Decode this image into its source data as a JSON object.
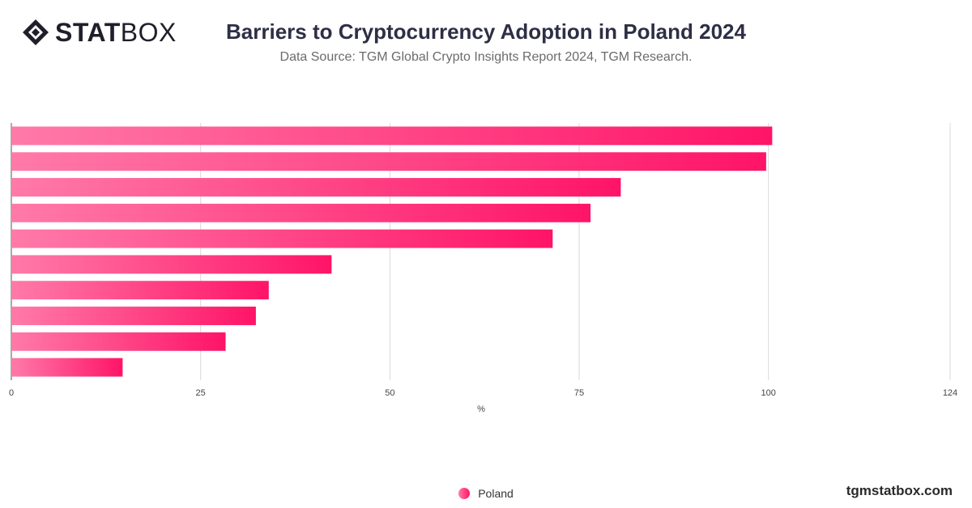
{
  "header": {
    "logo_bold": "STAT",
    "logo_light": "BOX",
    "logo_icon": "diamond-logo-icon"
  },
  "footer": {
    "site": "tgmstatbox.com"
  },
  "colors": {
    "bar_start": "#ff7aa8",
    "bar_end": "#ff1467",
    "grid": "#d9d9d9",
    "axis_text": "#444444"
  },
  "chart_data": {
    "type": "bar",
    "orientation": "horizontal",
    "title": "Barriers to Cryptocurrency Adoption in Poland 2024",
    "subtitle": "Data Source: TGM Global Crypto Insights Report 2024, TGM Research.",
    "xlabel": "%",
    "ylabel": "",
    "xlim": [
      0,
      124
    ],
    "xticks": [
      0,
      25,
      50,
      75,
      100,
      124
    ],
    "grid": true,
    "legend_position": "bottom",
    "categories": [
      "",
      "",
      "",
      "",
      "",
      "",
      "",
      "",
      "",
      ""
    ],
    "series": [
      {
        "name": "Poland",
        "values": [
          100.5,
          99.7,
          80.5,
          76.5,
          71.5,
          42.3,
          34.0,
          32.3,
          28.3,
          14.7
        ]
      }
    ]
  }
}
